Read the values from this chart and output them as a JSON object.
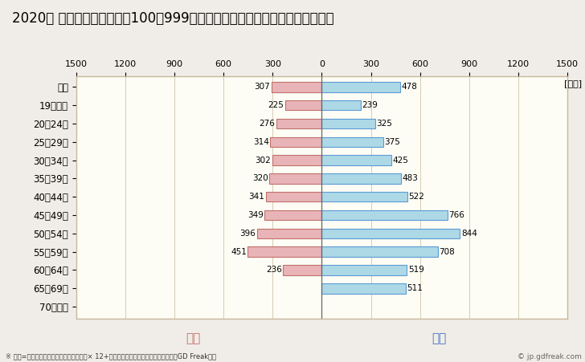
{
  "title": "2020年 民間企業（従業者数100～999人）フルタイム労働者の男女別平均年収",
  "unit_label": "[万円]",
  "categories": [
    "全体",
    "19歳以下",
    "20～24歳",
    "25～29歳",
    "30～34歳",
    "35～39歳",
    "40～44歳",
    "45～49歳",
    "50～54歳",
    "55～59歳",
    "60～64歳",
    "65～69歳",
    "70歳以上"
  ],
  "female_values": [
    307,
    225,
    276,
    314,
    302,
    320,
    341,
    349,
    396,
    451,
    236,
    0,
    0
  ],
  "male_values": [
    478,
    239,
    325,
    375,
    425,
    483,
    522,
    766,
    844,
    708,
    519,
    511,
    0
  ],
  "female_color": "#e8b4b8",
  "male_color": "#add8e6",
  "female_border_color": "#c0706a",
  "male_border_color": "#5b9bd5",
  "xlim": 1500,
  "xlabel_female": "女性",
  "xlabel_male": "男性",
  "female_label_color": "#c0706a",
  "male_label_color": "#4472c4",
  "footnote": "※ 年収=「きまって支給する現金給与額」× 12+「年間賞与その他特別給与額」としてGD Freak推計",
  "copyright": "© jp.gdfreak.com",
  "background_color": "#f0ede8",
  "plot_background_color": "#fdfdf5",
  "title_fontsize": 12,
  "bar_height": 0.55,
  "zero_line_color": "#666666",
  "border_color": "#c8b89a",
  "grid_color": "#c8b89a"
}
